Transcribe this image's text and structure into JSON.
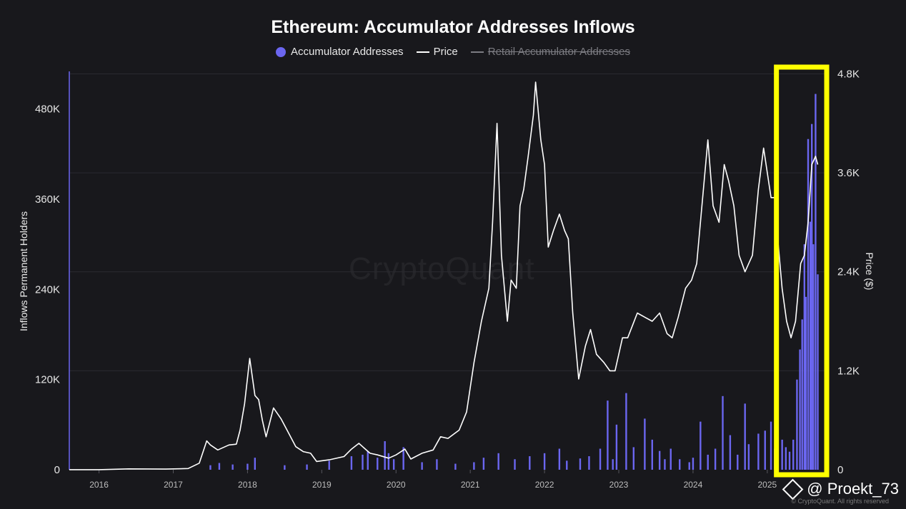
{
  "header": {
    "title": "Ethereum: Accumulator Addresses Inflows"
  },
  "legend": [
    {
      "label": "Accumulator Addresses",
      "kind": "dot",
      "color": "#6b66f0",
      "enabled": true
    },
    {
      "label": "Price",
      "kind": "line",
      "color": "#ffffff",
      "enabled": true
    },
    {
      "label": "Retail Accumulator Addresses",
      "kind": "line",
      "color": "#7c7c82",
      "enabled": false
    }
  ],
  "watermark": "CryptoQuant",
  "footer": {
    "handle": "@ Proekt_73",
    "copyright": "© CryptoQuant. All rights reserved"
  },
  "colors": {
    "background": "#18181c",
    "inflow_bars": "#6b66f0",
    "price_line": "#ffffff",
    "highlight_box": "#ffff00",
    "grid": "#2a2a30"
  },
  "chart_data": {
    "type": "bar+line",
    "title": "Ethereum: Accumulator Addresses Inflows",
    "x_ticks": [
      "2016",
      "2017",
      "2018",
      "2019",
      "2020",
      "2021",
      "2022",
      "2023",
      "2024",
      "2025"
    ],
    "x_range": [
      2015.6,
      2025.8
    ],
    "left_axis": {
      "label": "Inflows Permanent Holders",
      "ticks": [
        "0",
        "120K",
        "240K",
        "360K",
        "480K"
      ],
      "tick_values": [
        0,
        120000,
        240000,
        360000,
        480000
      ],
      "range": [
        0,
        530000
      ]
    },
    "right_axis": {
      "label": "Price ($)",
      "ticks": [
        "0",
        "1.2K",
        "2.4K",
        "3.6K",
        "4.8K"
      ],
      "tick_values": [
        0,
        1200,
        2400,
        3600,
        4800
      ],
      "range": [
        0,
        4830
      ]
    },
    "grid": "horizontal",
    "series": [
      {
        "name": "Price",
        "type": "line",
        "axis": "right",
        "points": [
          [
            2015.6,
            1
          ],
          [
            2016.0,
            1
          ],
          [
            2016.4,
            10
          ],
          [
            2016.9,
            8
          ],
          [
            2017.2,
            15
          ],
          [
            2017.35,
            80
          ],
          [
            2017.45,
            350
          ],
          [
            2017.5,
            300
          ],
          [
            2017.6,
            240
          ],
          [
            2017.75,
            300
          ],
          [
            2017.85,
            310
          ],
          [
            2017.9,
            480
          ],
          [
            2017.96,
            800
          ],
          [
            2018.03,
            1350
          ],
          [
            2018.1,
            900
          ],
          [
            2018.15,
            850
          ],
          [
            2018.2,
            600
          ],
          [
            2018.25,
            400
          ],
          [
            2018.35,
            750
          ],
          [
            2018.45,
            620
          ],
          [
            2018.55,
            450
          ],
          [
            2018.65,
            280
          ],
          [
            2018.75,
            220
          ],
          [
            2018.85,
            200
          ],
          [
            2018.93,
            100
          ],
          [
            2019.1,
            120
          ],
          [
            2019.3,
            160
          ],
          [
            2019.4,
            250
          ],
          [
            2019.5,
            320
          ],
          [
            2019.55,
            280
          ],
          [
            2019.65,
            200
          ],
          [
            2019.75,
            180
          ],
          [
            2019.9,
            140
          ],
          [
            2020.0,
            180
          ],
          [
            2020.12,
            250
          ],
          [
            2020.2,
            130
          ],
          [
            2020.35,
            200
          ],
          [
            2020.5,
            240
          ],
          [
            2020.6,
            400
          ],
          [
            2020.7,
            380
          ],
          [
            2020.85,
            480
          ],
          [
            2020.95,
            700
          ],
          [
            2021.05,
            1300
          ],
          [
            2021.15,
            1800
          ],
          [
            2021.25,
            2200
          ],
          [
            2021.3,
            3000
          ],
          [
            2021.36,
            4200
          ],
          [
            2021.42,
            2600
          ],
          [
            2021.5,
            1800
          ],
          [
            2021.55,
            2300
          ],
          [
            2021.62,
            2200
          ],
          [
            2021.67,
            3200
          ],
          [
            2021.72,
            3400
          ],
          [
            2021.78,
            3800
          ],
          [
            2021.85,
            4300
          ],
          [
            2021.88,
            4700
          ],
          [
            2021.95,
            4000
          ],
          [
            2022.0,
            3700
          ],
          [
            2022.05,
            2700
          ],
          [
            2022.12,
            2900
          ],
          [
            2022.2,
            3100
          ],
          [
            2022.27,
            2900
          ],
          [
            2022.32,
            2800
          ],
          [
            2022.38,
            1900
          ],
          [
            2022.46,
            1100
          ],
          [
            2022.55,
            1500
          ],
          [
            2022.62,
            1700
          ],
          [
            2022.7,
            1400
          ],
          [
            2022.8,
            1300
          ],
          [
            2022.88,
            1200
          ],
          [
            2022.95,
            1200
          ],
          [
            2023.05,
            1600
          ],
          [
            2023.12,
            1600
          ],
          [
            2023.25,
            1900
          ],
          [
            2023.35,
            1850
          ],
          [
            2023.45,
            1800
          ],
          [
            2023.55,
            1900
          ],
          [
            2023.65,
            1650
          ],
          [
            2023.72,
            1600
          ],
          [
            2023.8,
            1850
          ],
          [
            2023.9,
            2200
          ],
          [
            2023.98,
            2300
          ],
          [
            2024.05,
            2500
          ],
          [
            2024.15,
            3500
          ],
          [
            2024.2,
            4000
          ],
          [
            2024.27,
            3200
          ],
          [
            2024.35,
            3000
          ],
          [
            2024.42,
            3700
          ],
          [
            2024.48,
            3500
          ],
          [
            2024.55,
            3200
          ],
          [
            2024.62,
            2600
          ],
          [
            2024.7,
            2400
          ],
          [
            2024.8,
            2600
          ],
          [
            2024.88,
            3400
          ],
          [
            2024.95,
            3900
          ],
          [
            2025.0,
            3600
          ],
          [
            2025.05,
            3300
          ],
          [
            2025.1,
            3300
          ],
          [
            2025.15,
            2700
          ],
          [
            2025.2,
            2200
          ],
          [
            2025.26,
            1800
          ],
          [
            2025.32,
            1600
          ],
          [
            2025.38,
            1800
          ],
          [
            2025.45,
            2500
          ],
          [
            2025.5,
            2600
          ],
          [
            2025.55,
            3000
          ],
          [
            2025.6,
            3700
          ],
          [
            2025.65,
            3800
          ],
          [
            2025.68,
            3700
          ]
        ]
      },
      {
        "name": "Accumulator Addresses",
        "type": "bar",
        "axis": "left",
        "points": [
          [
            2017.5,
            6000
          ],
          [
            2017.62,
            9000
          ],
          [
            2017.8,
            7000
          ],
          [
            2018.0,
            8000
          ],
          [
            2018.1,
            16000
          ],
          [
            2018.5,
            6000
          ],
          [
            2018.8,
            7000
          ],
          [
            2019.1,
            12000
          ],
          [
            2019.4,
            18000
          ],
          [
            2019.55,
            20000
          ],
          [
            2019.62,
            25000
          ],
          [
            2019.75,
            16000
          ],
          [
            2019.85,
            38000
          ],
          [
            2019.9,
            22000
          ],
          [
            2019.97,
            14000
          ],
          [
            2020.1,
            30000
          ],
          [
            2020.35,
            10000
          ],
          [
            2020.55,
            14000
          ],
          [
            2020.8,
            8000
          ],
          [
            2021.05,
            10000
          ],
          [
            2021.18,
            16000
          ],
          [
            2021.38,
            22000
          ],
          [
            2021.6,
            14000
          ],
          [
            2021.8,
            18000
          ],
          [
            2022.0,
            22000
          ],
          [
            2022.2,
            28000
          ],
          [
            2022.3,
            12000
          ],
          [
            2022.48,
            15000
          ],
          [
            2022.6,
            18000
          ],
          [
            2022.75,
            28000
          ],
          [
            2022.85,
            92000
          ],
          [
            2022.92,
            14000
          ],
          [
            2022.97,
            60000
          ],
          [
            2023.1,
            102000
          ],
          [
            2023.2,
            30000
          ],
          [
            2023.35,
            68000
          ],
          [
            2023.45,
            40000
          ],
          [
            2023.55,
            25000
          ],
          [
            2023.62,
            14000
          ],
          [
            2023.7,
            28000
          ],
          [
            2023.82,
            14000
          ],
          [
            2023.95,
            10000
          ],
          [
            2024.0,
            16000
          ],
          [
            2024.1,
            64000
          ],
          [
            2024.2,
            20000
          ],
          [
            2024.3,
            28000
          ],
          [
            2024.4,
            98000
          ],
          [
            2024.5,
            46000
          ],
          [
            2024.6,
            20000
          ],
          [
            2024.7,
            88000
          ],
          [
            2024.75,
            34000
          ],
          [
            2024.88,
            48000
          ],
          [
            2024.97,
            52000
          ],
          [
            2025.05,
            64000
          ],
          [
            2025.1,
            28000
          ],
          [
            2025.14,
            30000
          ],
          [
            2025.2,
            40000
          ],
          [
            2025.25,
            30000
          ],
          [
            2025.3,
            24000
          ],
          [
            2025.35,
            40000
          ],
          [
            2025.4,
            120000
          ],
          [
            2025.44,
            160000
          ],
          [
            2025.47,
            200000
          ],
          [
            2025.5,
            300000
          ],
          [
            2025.52,
            230000
          ],
          [
            2025.55,
            440000
          ],
          [
            2025.58,
            330000
          ],
          [
            2025.6,
            460000
          ],
          [
            2025.62,
            300000
          ],
          [
            2025.65,
            500000
          ],
          [
            2025.68,
            260000
          ]
        ]
      }
    ],
    "annotations": [
      {
        "type": "highlight-box",
        "x_range": [
          2025.2,
          2025.8
        ],
        "color": "#ffff00"
      }
    ]
  }
}
